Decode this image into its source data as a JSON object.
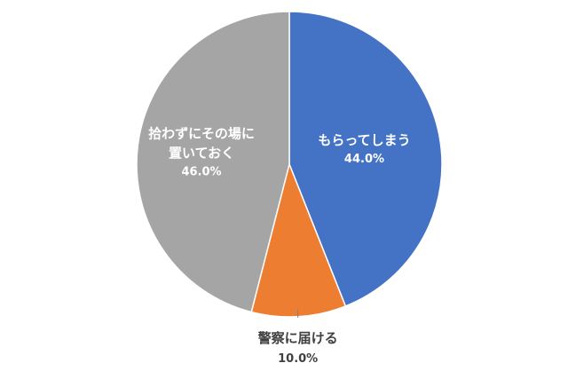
{
  "chart_data": {
    "type": "pie",
    "title": "",
    "start_angle_deg": 0,
    "direction": "clockwise",
    "slices": [
      {
        "label": "もらってしまう",
        "value": 44.0,
        "value_label": "44.0%",
        "color": "#4472c4",
        "label_color": "#ffffff",
        "label_lines": [
          "もらってしまう"
        ]
      },
      {
        "label": "警察に届ける",
        "value": 10.0,
        "value_label": "10.0%",
        "color": "#ed7d31",
        "label_color": "#404040",
        "label_lines": [
          "警察に届ける"
        ],
        "label_outside": true
      },
      {
        "label": "拾わずにその場に置いておく",
        "value": 46.0,
        "value_label": "46.0%",
        "color": "#a5a5a5",
        "label_color": "#ffffff",
        "label_lines": [
          "拾わずにその場に",
          "置いておく"
        ]
      }
    ]
  }
}
